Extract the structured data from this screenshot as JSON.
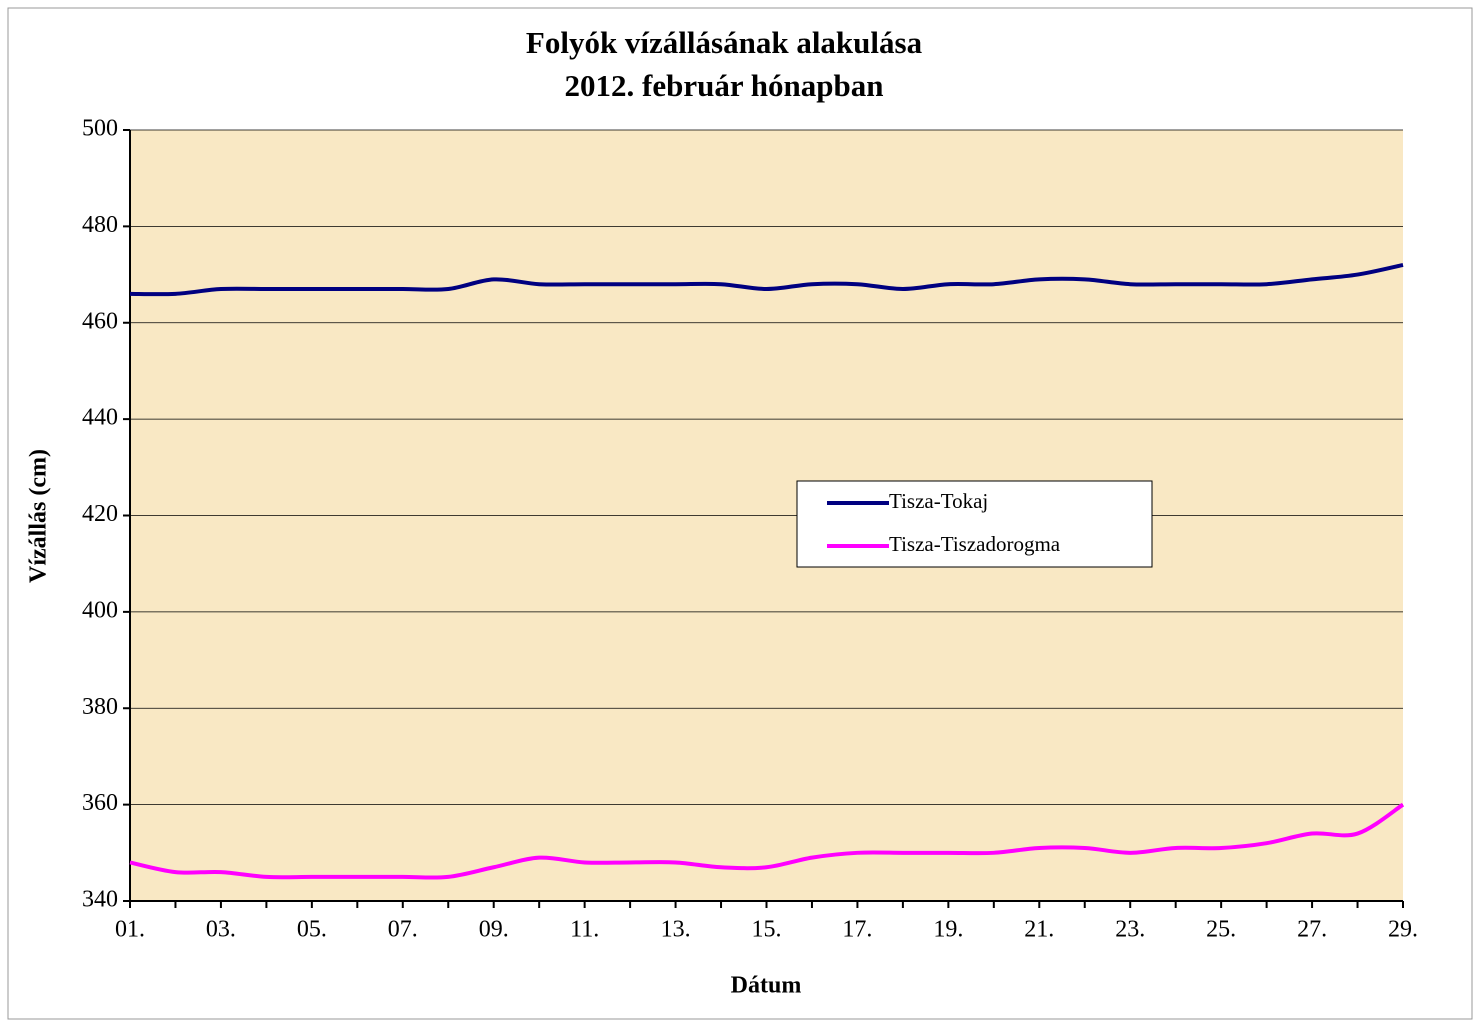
{
  "chart_data": {
    "type": "line",
    "title": [
      "Folyók vízállásának alakulása",
      "2012. február hónapban"
    ],
    "x_label": "Dátum",
    "y_label": "Vízállás (cm)",
    "categories": [
      "01.",
      null,
      "03.",
      null,
      "05.",
      null,
      "07.",
      null,
      "09.",
      null,
      "11.",
      null,
      "13.",
      null,
      "15.",
      null,
      "17.",
      null,
      "19.",
      null,
      "21.",
      null,
      "23.",
      null,
      "25.",
      null,
      "27.",
      null,
      "29."
    ],
    "series": [
      {
        "name": "Tisza-Tokaj",
        "color": "#000080",
        "values": [
          466,
          466,
          467,
          467,
          467,
          467,
          467,
          467,
          469,
          468,
          468,
          468,
          468,
          468,
          467,
          468,
          468,
          467,
          468,
          468,
          469,
          469,
          468,
          468,
          468,
          468,
          469,
          470,
          472
        ]
      },
      {
        "name": "Tisza-Tiszadorogma",
        "color": "#ff00ff",
        "values": [
          348,
          346,
          346,
          345,
          345,
          345,
          345,
          345,
          347,
          349,
          348,
          348,
          348,
          347,
          347,
          349,
          350,
          350,
          350,
          350,
          351,
          351,
          350,
          351,
          351,
          352,
          354,
          354,
          360
        ]
      }
    ],
    "ylim": [
      340,
      500
    ],
    "yticks": [
      340,
      360,
      380,
      400,
      420,
      440,
      460,
      480,
      500
    ],
    "grid": true,
    "legend": "center-right",
    "background": "#f9e8c4"
  }
}
